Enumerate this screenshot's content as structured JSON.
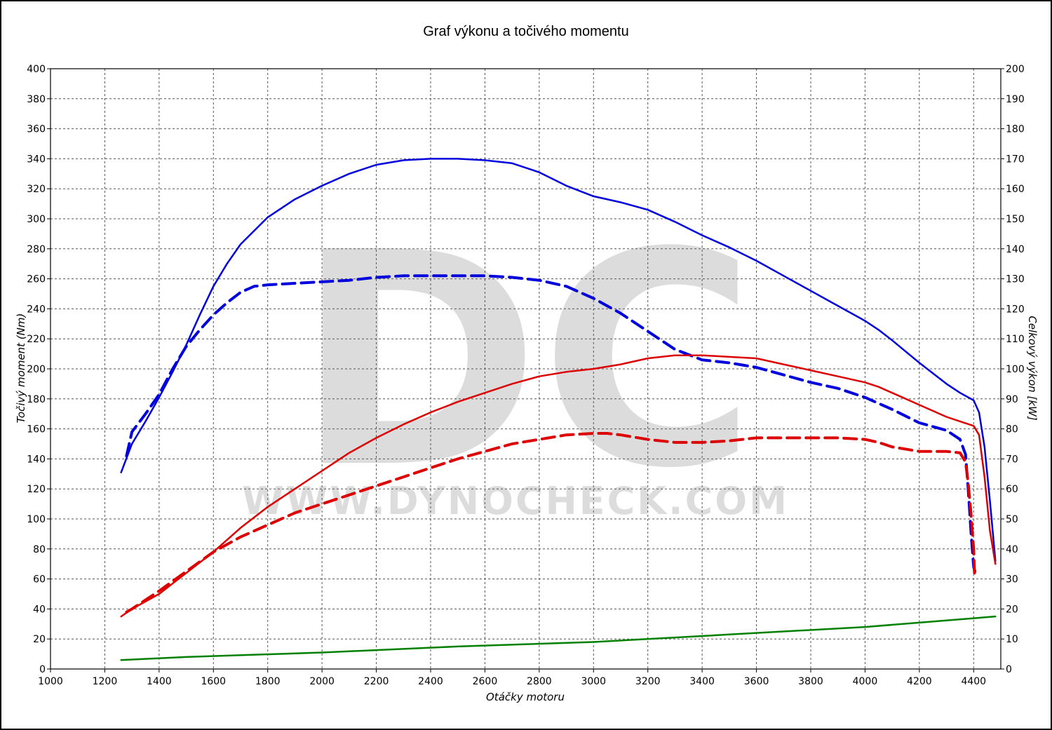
{
  "title": "Graf výkonu a točivého momentu",
  "watermark": {
    "logo": "DC",
    "url": "WWW.DYNOCHECK.COM"
  },
  "chart_data": {
    "type": "line",
    "title": "Graf výkonu a točivého momentu",
    "xlabel": "Otáčky motoru",
    "ylabel_left": "Točivý moment (Nm)",
    "ylabel_right": "Celkový výkon [kW]",
    "xlim": [
      1000,
      4500
    ],
    "ylim_left": [
      0,
      400
    ],
    "ylim_right": [
      0,
      200
    ],
    "x_ticks": [
      "1000",
      "1200",
      "1400",
      "1600",
      "1800",
      "2000",
      "2200",
      "2400",
      "2600",
      "2800",
      "3000",
      "3200",
      "3400",
      "3600",
      "3800",
      "4000",
      "4200",
      "4400"
    ],
    "y_ticks_left": [
      "0",
      "20",
      "40",
      "60",
      "80",
      "100",
      "120",
      "140",
      "160",
      "180",
      "200",
      "220",
      "240",
      "260",
      "280",
      "300",
      "320",
      "340",
      "360",
      "380",
      "400"
    ],
    "y_ticks_right": [
      "0",
      "10",
      "20",
      "30",
      "40",
      "50",
      "60",
      "70",
      "80",
      "90",
      "100",
      "110",
      "120",
      "130",
      "140",
      "150",
      "160",
      "170",
      "180",
      "190",
      "200"
    ],
    "grid": true,
    "series": [
      {
        "color": "#0000dd",
        "dashed": false,
        "axis": "left",
        "x": [
          1260,
          1300,
          1350,
          1400,
          1450,
          1500,
          1550,
          1600,
          1650,
          1700,
          1800,
          1900,
          2000,
          2100,
          2200,
          2300,
          2400,
          2500,
          2600,
          2700,
          2800,
          2900,
          3000,
          3100,
          3200,
          3300,
          3400,
          3500,
          3600,
          3700,
          3800,
          3900,
          4000,
          4050,
          4100,
          4200,
          4300,
          4350,
          4400,
          4420,
          4440,
          4460,
          4480
        ],
        "y": [
          131,
          150,
          165,
          181,
          198,
          216,
          236,
          255,
          270,
          283,
          301,
          313,
          322,
          330,
          336,
          339,
          340,
          340,
          339,
          337,
          331,
          322,
          315,
          311,
          306,
          298,
          289,
          281,
          272,
          262,
          252,
          242,
          232,
          226,
          219,
          204,
          190,
          184,
          179,
          171,
          148,
          112,
          72
        ]
      },
      {
        "color": "#0000dd",
        "dashed": true,
        "axis": "left",
        "x": [
          1280,
          1300,
          1350,
          1400,
          1450,
          1500,
          1550,
          1600,
          1650,
          1700,
          1750,
          1800,
          1900,
          2000,
          2100,
          2200,
          2300,
          2400,
          2500,
          2600,
          2700,
          2800,
          2900,
          3000,
          3100,
          3200,
          3300,
          3400,
          3500,
          3600,
          3700,
          3800,
          3900,
          4000,
          4100,
          4200,
          4300,
          4350,
          4370,
          4380,
          4390,
          4400,
          4405
        ],
        "y": [
          142,
          158,
          170,
          183,
          200,
          215,
          226,
          236,
          244,
          251,
          255,
          256,
          257,
          258,
          259,
          261,
          262,
          262,
          262,
          262,
          261,
          259,
          255,
          247,
          237,
          225,
          213,
          206,
          204,
          201,
          196,
          191,
          187,
          181,
          173,
          164,
          159,
          153,
          143,
          120,
          92,
          68,
          65
        ]
      },
      {
        "color": "#dd0000",
        "dashed": false,
        "axis": "right",
        "x": [
          1260,
          1300,
          1400,
          1500,
          1600,
          1700,
          1800,
          1900,
          2000,
          2100,
          2200,
          2300,
          2400,
          2500,
          2600,
          2700,
          2800,
          2900,
          3000,
          3100,
          3200,
          3300,
          3400,
          3500,
          3600,
          3700,
          3800,
          3900,
          4000,
          4050,
          4100,
          4200,
          4300,
          4350,
          4400,
          4420,
          4440,
          4460,
          4480
        ],
        "y": [
          17.5,
          20,
          25,
          32,
          39,
          47,
          54,
          60,
          66,
          72,
          77,
          81.5,
          85.5,
          89,
          92,
          95,
          97.5,
          99,
          100,
          101.5,
          103.5,
          104.5,
          104.5,
          104,
          103.5,
          101.5,
          99.5,
          97.5,
          95.5,
          94,
          92,
          88,
          84,
          82.5,
          81,
          78,
          64,
          46,
          35
        ]
      },
      {
        "color": "#dd0000",
        "dashed": true,
        "axis": "right",
        "x": [
          1280,
          1300,
          1400,
          1500,
          1600,
          1700,
          1800,
          1900,
          2000,
          2100,
          2200,
          2300,
          2400,
          2500,
          2600,
          2700,
          2800,
          2900,
          3000,
          3050,
          3100,
          3200,
          3300,
          3400,
          3500,
          3600,
          3700,
          3800,
          3900,
          4000,
          4050,
          4100,
          4200,
          4300,
          4350,
          4370,
          4380,
          4390,
          4400,
          4403,
          4406
        ],
        "y": [
          19,
          20,
          26,
          32.5,
          39,
          44,
          48,
          52,
          55,
          58,
          61,
          64,
          67,
          70,
          72.5,
          75,
          76.5,
          78,
          78.5,
          78.5,
          78,
          76.5,
          75.5,
          75.5,
          76,
          77,
          77,
          77,
          77,
          76.5,
          75.5,
          74,
          72.5,
          72.5,
          72,
          69,
          62,
          52,
          40,
          32,
          30
        ]
      },
      {
        "color": "#008000",
        "dashed": false,
        "axis": "right",
        "x": [
          1260,
          1500,
          2000,
          2500,
          3000,
          3500,
          4000,
          4480
        ],
        "y": [
          3,
          4,
          5.5,
          7.5,
          9,
          11.5,
          14,
          17.5
        ]
      }
    ]
  }
}
